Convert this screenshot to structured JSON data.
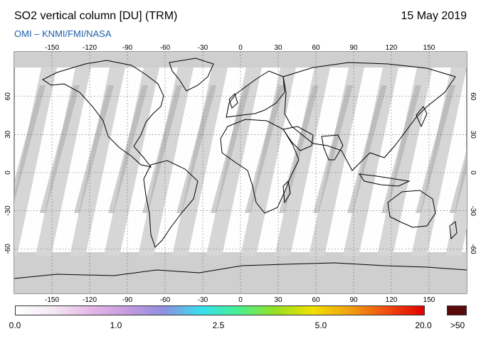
{
  "header": {
    "title": "SO2 vertical column [DU] (TRM)",
    "date": "15 May 2019",
    "source": "OMI  –  KNMI/FMI/NASA"
  },
  "map": {
    "lon_ticks": [
      "-150",
      "-120",
      "-90",
      "-60",
      "-30",
      "0",
      "30",
      "60",
      "90",
      "120",
      "150"
    ],
    "lat_ticks": [
      "60",
      "30",
      "0",
      "-30",
      "-60"
    ],
    "colors": {
      "ocean": "#ffffff",
      "no_data_polar": "#cfcfcf",
      "swath_light": "#d6d6d6",
      "swath_dark": "#a9a9a9",
      "coastline": "#000000",
      "grid": "#555555"
    }
  },
  "colorbar": {
    "labels": [
      "0.0",
      "1.0",
      "2.5",
      "5.0",
      "20.0",
      ">50"
    ],
    "gradient": [
      "#ffffff",
      "#f4e9f4",
      "#e6b8e6",
      "#c69ae0",
      "#8f8fe0",
      "#36e0f0",
      "#46f090",
      "#96e020",
      "#f0e000",
      "#f0a010",
      "#f04c10",
      "#e00000"
    ],
    "overflow_color": "#5a0a0a"
  }
}
